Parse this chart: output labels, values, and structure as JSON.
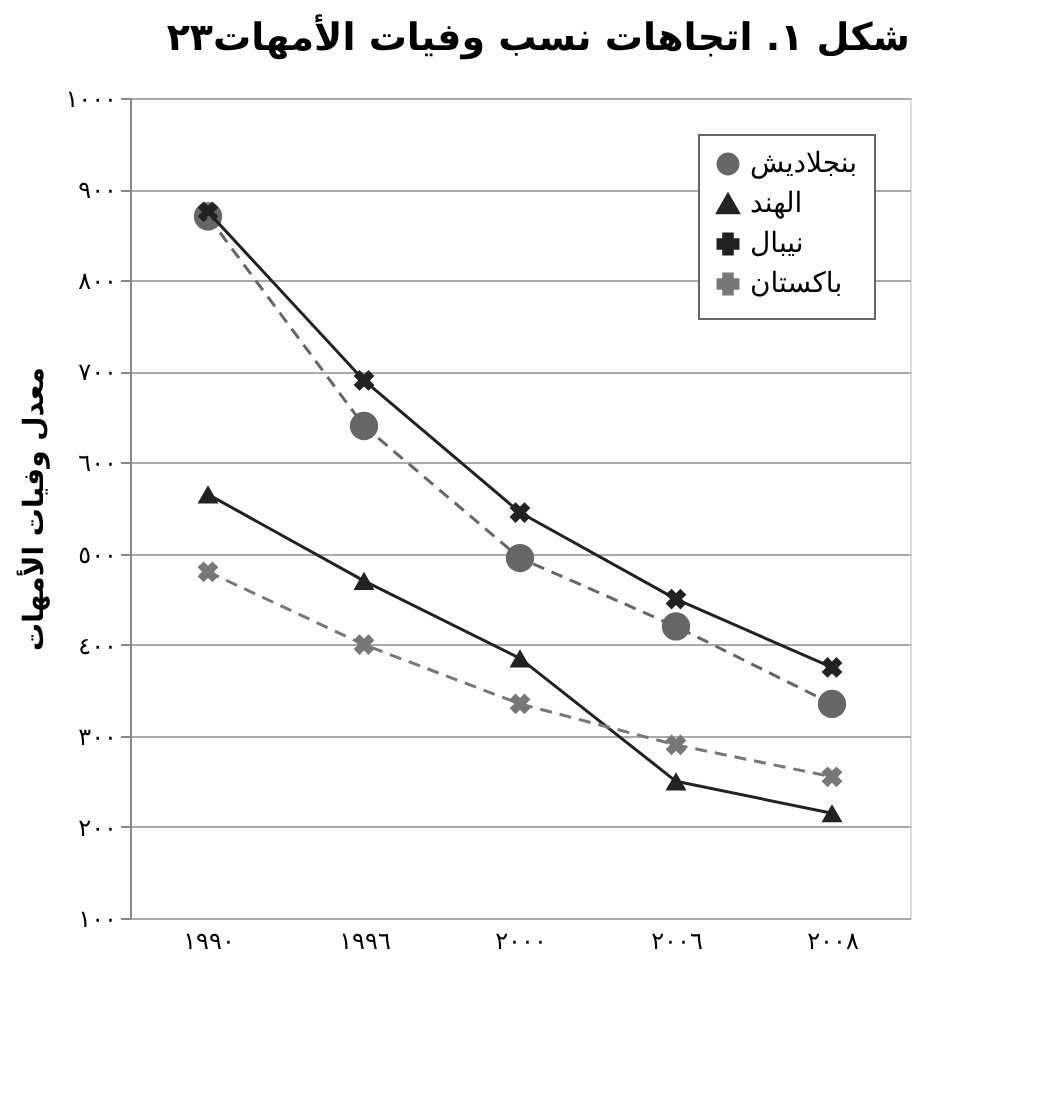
{
  "chart_data": {
    "type": "line",
    "title": "شكل ١. اتجاهات نسب وفيات الأمهات٢٣",
    "ylabel": "معدل وفيات الأمهات",
    "categories": [
      "١٩٩٠",
      "١٩٩٦",
      "٢٠٠٠",
      "٢٠٠٦",
      "٢٠٠٨"
    ],
    "series": [
      {
        "name": "بنجلاديش",
        "color": "#666666",
        "marker": "circle",
        "line_style": "dashed",
        "values": [
          870,
          640,
          495,
          420,
          335
        ]
      },
      {
        "name": "الهند",
        "color": "#222222",
        "marker": "triangle",
        "line_style": "solid",
        "values": [
          565,
          470,
          385,
          250,
          215
        ]
      },
      {
        "name": "نيبال",
        "color": "#222222",
        "marker": "cross",
        "line_style": "solid",
        "values": [
          875,
          690,
          545,
          450,
          375
        ]
      },
      {
        "name": "باكستان",
        "color": "#777777",
        "marker": "cross",
        "line_style": "dashed",
        "values": [
          480,
          400,
          335,
          290,
          255
        ]
      }
    ],
    "ylim": [
      100,
      1000
    ],
    "yticks": [
      {
        "value": 100,
        "label": "١٠٠"
      },
      {
        "value": 200,
        "label": "٢٠٠"
      },
      {
        "value": 300,
        "label": "٣٠٠"
      },
      {
        "value": 400,
        "label": "٤٠٠"
      },
      {
        "value": 500,
        "label": "٥٠٠"
      },
      {
        "value": 600,
        "label": "٦٠٠"
      },
      {
        "value": 700,
        "label": "٧٠٠"
      },
      {
        "value": 800,
        "label": "٨٠٠"
      },
      {
        "value": 900,
        "label": "٩٠٠"
      },
      {
        "value": 1000,
        "label": "١٠٠٠"
      }
    ],
    "grid": "y",
    "legend": "top right"
  }
}
